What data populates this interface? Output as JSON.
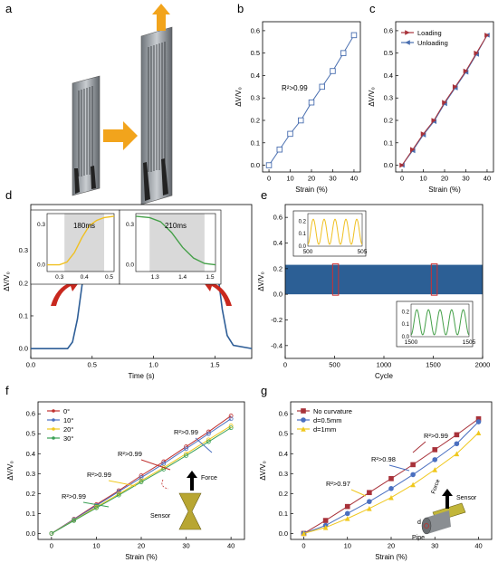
{
  "colors": {
    "blue": "#4a6fb0",
    "red": "#a8323a",
    "orange": "#f2a41c",
    "yellow": "#f0d21e",
    "green": "#45a049",
    "deepblue": "#2e5e97",
    "gray": "#555a60"
  },
  "panel_labels": {
    "a": "a",
    "b": "b",
    "c": "c",
    "d": "d",
    "e": "e",
    "f": "f",
    "g": "g"
  },
  "panels": {
    "a": {
      "illustration": "stretchable-sensor-before-after-stretch",
      "arrow_icon": "right-arrow-icon",
      "pull_icon": "up-arrow-icon"
    }
  },
  "chart_data": [
    {
      "id": "b",
      "type": "line",
      "xlabel": "Strain (%)",
      "ylabel": "ΔV/V₀",
      "xlim": [
        -3,
        43
      ],
      "ylim": [
        -0.03,
        0.64
      ],
      "xticks": [
        0,
        10,
        20,
        30,
        40
      ],
      "yticks": [
        0.0,
        0.1,
        0.2,
        0.3,
        0.4,
        0.5,
        0.6
      ],
      "grid": false,
      "annotations": [
        {
          "text": "R²>0.99"
        }
      ],
      "series": [
        {
          "x": [
            0,
            5,
            10,
            15,
            20,
            25,
            30,
            35,
            40
          ],
          "y": [
            0,
            0.07,
            0.14,
            0.2,
            0.28,
            0.35,
            0.42,
            0.5,
            0.58
          ],
          "color": "#4a6fb0",
          "marker": "open-square"
        }
      ]
    },
    {
      "id": "c",
      "type": "line",
      "xlabel": "Strain (%)",
      "ylabel": "ΔV/V₀",
      "xlim": [
        -3,
        43
      ],
      "ylim": [
        -0.03,
        0.64
      ],
      "xticks": [
        0,
        10,
        20,
        30,
        40
      ],
      "yticks": [
        0.0,
        0.1,
        0.2,
        0.3,
        0.4,
        0.5,
        0.6
      ],
      "legend": "top-left",
      "series": [
        {
          "name": "Loading",
          "x": [
            0,
            5,
            10,
            15,
            20,
            25,
            30,
            35,
            40
          ],
          "y": [
            0,
            0.07,
            0.14,
            0.2,
            0.28,
            0.35,
            0.42,
            0.5,
            0.58
          ],
          "color": "#a8323a",
          "marker": "right-triangle"
        },
        {
          "name": "Unloading",
          "x": [
            0,
            5,
            10,
            15,
            20,
            25,
            30,
            35,
            40
          ],
          "y": [
            0,
            0.065,
            0.135,
            0.195,
            0.275,
            0.345,
            0.415,
            0.495,
            0.58
          ],
          "color": "#4a6fb0",
          "marker": "left-triangle"
        }
      ]
    },
    {
      "id": "d",
      "type": "line",
      "xlabel": "Time (s)",
      "ylabel": "ΔV/V₀",
      "xlim": [
        0,
        1.8
      ],
      "ylim": [
        -0.03,
        0.44
      ],
      "xticks": [
        0.0,
        0.5,
        1.0,
        1.5
      ],
      "yticks": [
        0.0,
        0.1,
        0.2,
        0.3
      ],
      "series": [
        {
          "x": [
            0,
            0.3,
            0.34,
            0.38,
            0.42,
            0.46,
            0.5,
            0.55,
            0.6,
            1.0,
            1.45,
            1.48,
            1.52,
            1.56,
            1.6,
            1.65,
            1.8
          ],
          "y": [
            0,
            0,
            0.02,
            0.09,
            0.2,
            0.3,
            0.35,
            0.36,
            0.365,
            0.37,
            0.36,
            0.33,
            0.24,
            0.12,
            0.04,
            0.01,
            0.0
          ],
          "color": "#2e5e97"
        }
      ],
      "insets": [
        {
          "xlim": [
            0.25,
            0.52
          ],
          "ylim": [
            -0.05,
            0.38
          ],
          "xticks": [
            0.3,
            0.4,
            0.5
          ],
          "yticks": [
            0.0,
            0.3
          ],
          "shade": [
            0.32,
            0.48
          ],
          "label": "180ms",
          "series": [
            {
              "x": [
                0.25,
                0.3,
                0.33,
                0.36,
                0.39,
                0.42,
                0.45,
                0.48,
                0.52
              ],
              "y": [
                0,
                0,
                0.02,
                0.09,
                0.2,
                0.29,
                0.33,
                0.35,
                0.36
              ],
              "color": "#f0c020"
            }
          ]
        },
        {
          "xlim": [
            1.23,
            1.52
          ],
          "ylim": [
            -0.05,
            0.38
          ],
          "xticks": [
            1.3,
            1.4,
            1.5
          ],
          "yticks": [
            0.0,
            0.3
          ],
          "shade": [
            1.28,
            1.48
          ],
          "label": "210ms",
          "series": [
            {
              "x": [
                1.23,
                1.28,
                1.32,
                1.36,
                1.4,
                1.44,
                1.48,
                1.52
              ],
              "y": [
                0.36,
                0.35,
                0.32,
                0.24,
                0.13,
                0.05,
                0.01,
                0.0
              ],
              "color": "#45a049"
            }
          ]
        }
      ]
    },
    {
      "id": "e",
      "type": "area",
      "xlabel": "Cycle",
      "ylabel": "ΔV/V₀",
      "xlim": [
        0,
        2000
      ],
      "ylim": [
        -0.5,
        0.7
      ],
      "xticks": [
        0,
        500,
        1000,
        1500,
        2000
      ],
      "yticks": [
        -0.4,
        -0.2,
        0.0,
        0.2,
        0.4,
        0.6
      ],
      "band": [
        0.0,
        0.23
      ],
      "band_color": "#2c5f95",
      "highlights": [
        {
          "x": [
            480,
            540
          ],
          "color": "#d03030"
        },
        {
          "x": [
            1480,
            1540
          ],
          "color": "#d03030"
        }
      ],
      "insets": [
        {
          "xlim": [
            500,
            505
          ],
          "ylim": [
            0,
            0.26
          ],
          "xticks": [
            500,
            505
          ],
          "yticks": [
            0.0,
            0.1,
            0.2
          ],
          "color": "#f0c020",
          "cycles": 5
        },
        {
          "xlim": [
            1500,
            1505
          ],
          "ylim": [
            0,
            0.26
          ],
          "xticks": [
            1500,
            1505
          ],
          "yticks": [
            0.0,
            0.1,
            0.2
          ],
          "color": "#45a049",
          "cycles": 5
        }
      ]
    },
    {
      "id": "f",
      "type": "line",
      "xlabel": "Strain (%)",
      "ylabel": "ΔV/V₀",
      "xlim": [
        -3,
        43
      ],
      "ylim": [
        -0.03,
        0.66
      ],
      "xticks": [
        0,
        10,
        20,
        30,
        40
      ],
      "yticks": [
        0.0,
        0.1,
        0.2,
        0.3,
        0.4,
        0.5,
        0.6
      ],
      "legend": "top-left",
      "annotations": [
        {
          "text": "R²>0.99"
        },
        {
          "text": "R²>0.99"
        },
        {
          "text": "R²>0.99"
        },
        {
          "text": "R²>0.99"
        }
      ],
      "inset_labels": {
        "force": "Force",
        "sensor": "Sensor"
      },
      "series": [
        {
          "name": "0°",
          "x": [
            0,
            5,
            10,
            15,
            20,
            25,
            30,
            35,
            40
          ],
          "y": [
            0,
            0.072,
            0.145,
            0.215,
            0.29,
            0.36,
            0.435,
            0.51,
            0.59
          ],
          "color": "#c0302e"
        },
        {
          "name": "10°",
          "x": [
            0,
            5,
            10,
            15,
            20,
            25,
            30,
            35,
            40
          ],
          "y": [
            0,
            0.07,
            0.14,
            0.21,
            0.28,
            0.35,
            0.425,
            0.5,
            0.575
          ],
          "color": "#4a6fc0"
        },
        {
          "name": "20°",
          "x": [
            0,
            5,
            10,
            15,
            20,
            25,
            30,
            35,
            40
          ],
          "y": [
            0,
            0.066,
            0.132,
            0.198,
            0.265,
            0.33,
            0.4,
            0.47,
            0.54
          ],
          "color": "#f0c81e"
        },
        {
          "name": "30°",
          "x": [
            0,
            5,
            10,
            15,
            20,
            25,
            30,
            35,
            40
          ],
          "y": [
            0,
            0.064,
            0.128,
            0.192,
            0.258,
            0.322,
            0.39,
            0.46,
            0.53
          ],
          "color": "#3aa055"
        }
      ]
    },
    {
      "id": "g",
      "type": "line",
      "xlabel": "Strain (%)",
      "ylabel": "ΔV/V₀",
      "xlim": [
        -3,
        43
      ],
      "ylim": [
        -0.03,
        0.66
      ],
      "xticks": [
        0,
        10,
        20,
        30,
        40
      ],
      "yticks": [
        0.0,
        0.1,
        0.2,
        0.3,
        0.4,
        0.5,
        0.6
      ],
      "legend": "top-left",
      "annotations": [
        {
          "text": "R²>0.99"
        },
        {
          "text": "R²>0.98"
        },
        {
          "text": "R²>0.97"
        }
      ],
      "inset_labels": {
        "force": "Force",
        "sensor": "Sensor",
        "d": "d",
        "pipe": "Pipe"
      },
      "series": [
        {
          "name": "No curvature",
          "x": [
            0,
            5,
            10,
            15,
            20,
            25,
            30,
            35,
            40
          ],
          "y": [
            0,
            0.065,
            0.135,
            0.205,
            0.275,
            0.345,
            0.42,
            0.495,
            0.575
          ],
          "color": "#a8323a",
          "marker": "square"
        },
        {
          "name": "d=0.5mm",
          "x": [
            0,
            5,
            10,
            15,
            20,
            25,
            30,
            35,
            40
          ],
          "y": [
            0,
            0.04,
            0.1,
            0.16,
            0.225,
            0.295,
            0.37,
            0.45,
            0.56
          ],
          "color": "#4a6fc0",
          "marker": "circle"
        },
        {
          "name": "d=1mm",
          "x": [
            0,
            5,
            10,
            15,
            20,
            25,
            30,
            35,
            40
          ],
          "y": [
            0,
            0.03,
            0.075,
            0.125,
            0.18,
            0.245,
            0.32,
            0.4,
            0.505
          ],
          "color": "#f0c81e",
          "marker": "triangle"
        }
      ]
    }
  ]
}
